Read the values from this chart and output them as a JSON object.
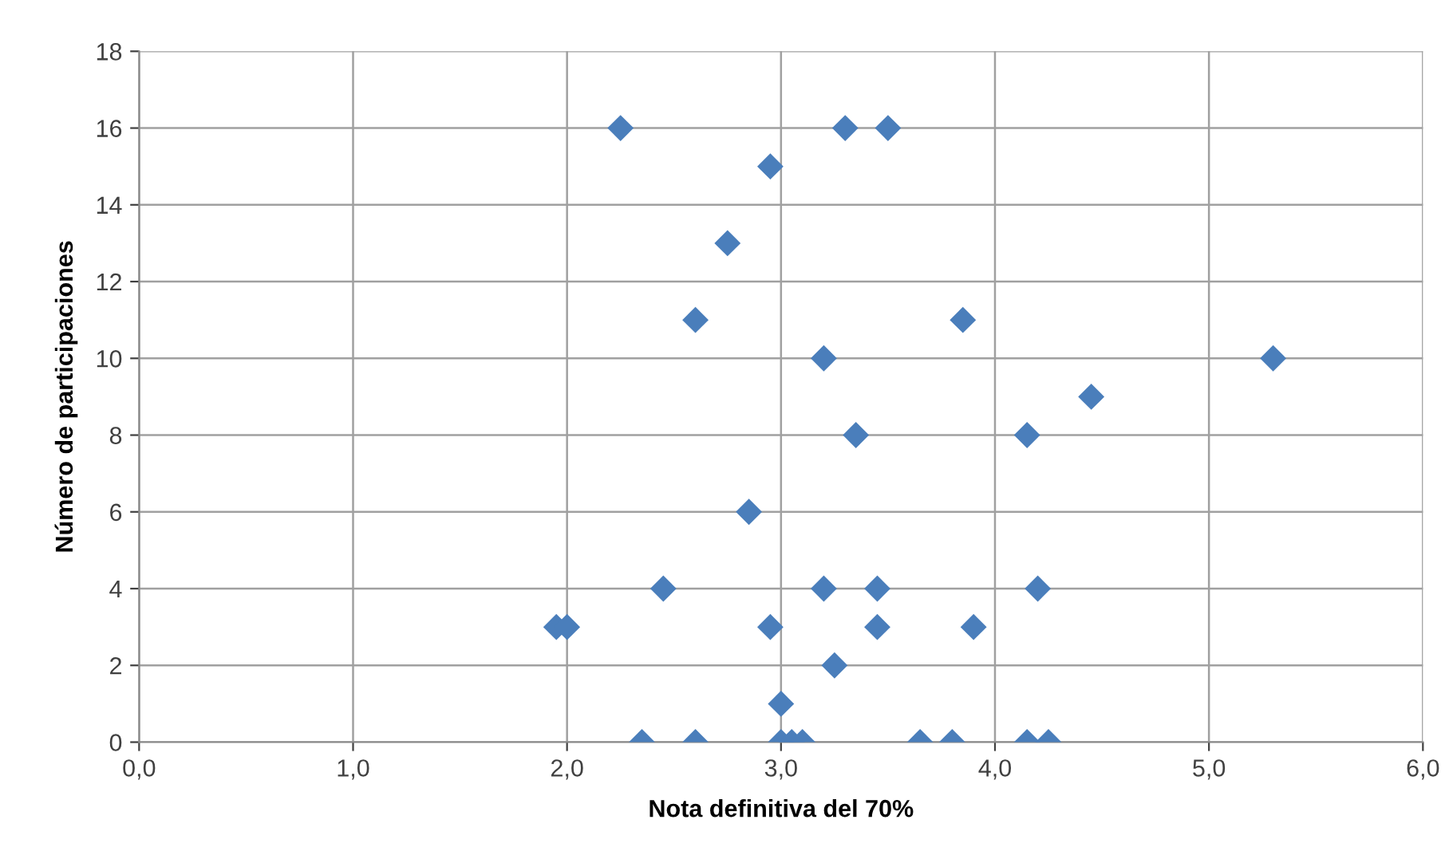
{
  "chart_data": {
    "type": "scatter",
    "xlabel": "Nota definitiva del 70%",
    "ylabel": "Número de participaciones",
    "x": [
      2.25,
      3.3,
      3.5,
      2.95,
      2.75,
      2.6,
      3.85,
      3.2,
      5.3,
      4.45,
      3.35,
      4.15,
      2.85,
      2.45,
      3.2,
      3.45,
      4.2,
      1.95,
      2.0,
      2.95,
      3.45,
      3.9,
      3.25,
      3.0,
      2.35,
      2.6,
      3.0,
      3.05,
      3.1,
      3.65,
      3.8,
      4.15,
      4.25
    ],
    "series": [
      {
        "color": "#4a7ebb",
        "values": [
          16,
          16,
          16,
          15,
          13,
          11,
          11,
          10,
          10,
          9,
          8,
          8,
          6,
          4,
          4,
          4,
          4,
          3,
          3,
          3,
          3,
          3,
          2,
          1,
          0,
          0,
          0,
          0,
          0,
          0,
          0,
          0,
          0
        ]
      }
    ],
    "marker": "diamond",
    "xlim": [
      0,
      6
    ],
    "ylim": [
      0,
      18
    ],
    "xticks": [
      {
        "value": 0,
        "label": "0,0"
      },
      {
        "value": 1,
        "label": "1,0"
      },
      {
        "value": 2,
        "label": "2,0"
      },
      {
        "value": 3,
        "label": "3,0"
      },
      {
        "value": 4,
        "label": "4,0"
      },
      {
        "value": 5,
        "label": "5,0"
      },
      {
        "value": 6,
        "label": "6,0"
      }
    ],
    "yticks": [
      0,
      2,
      4,
      6,
      8,
      10,
      12,
      14,
      16,
      18
    ],
    "grid": true
  }
}
